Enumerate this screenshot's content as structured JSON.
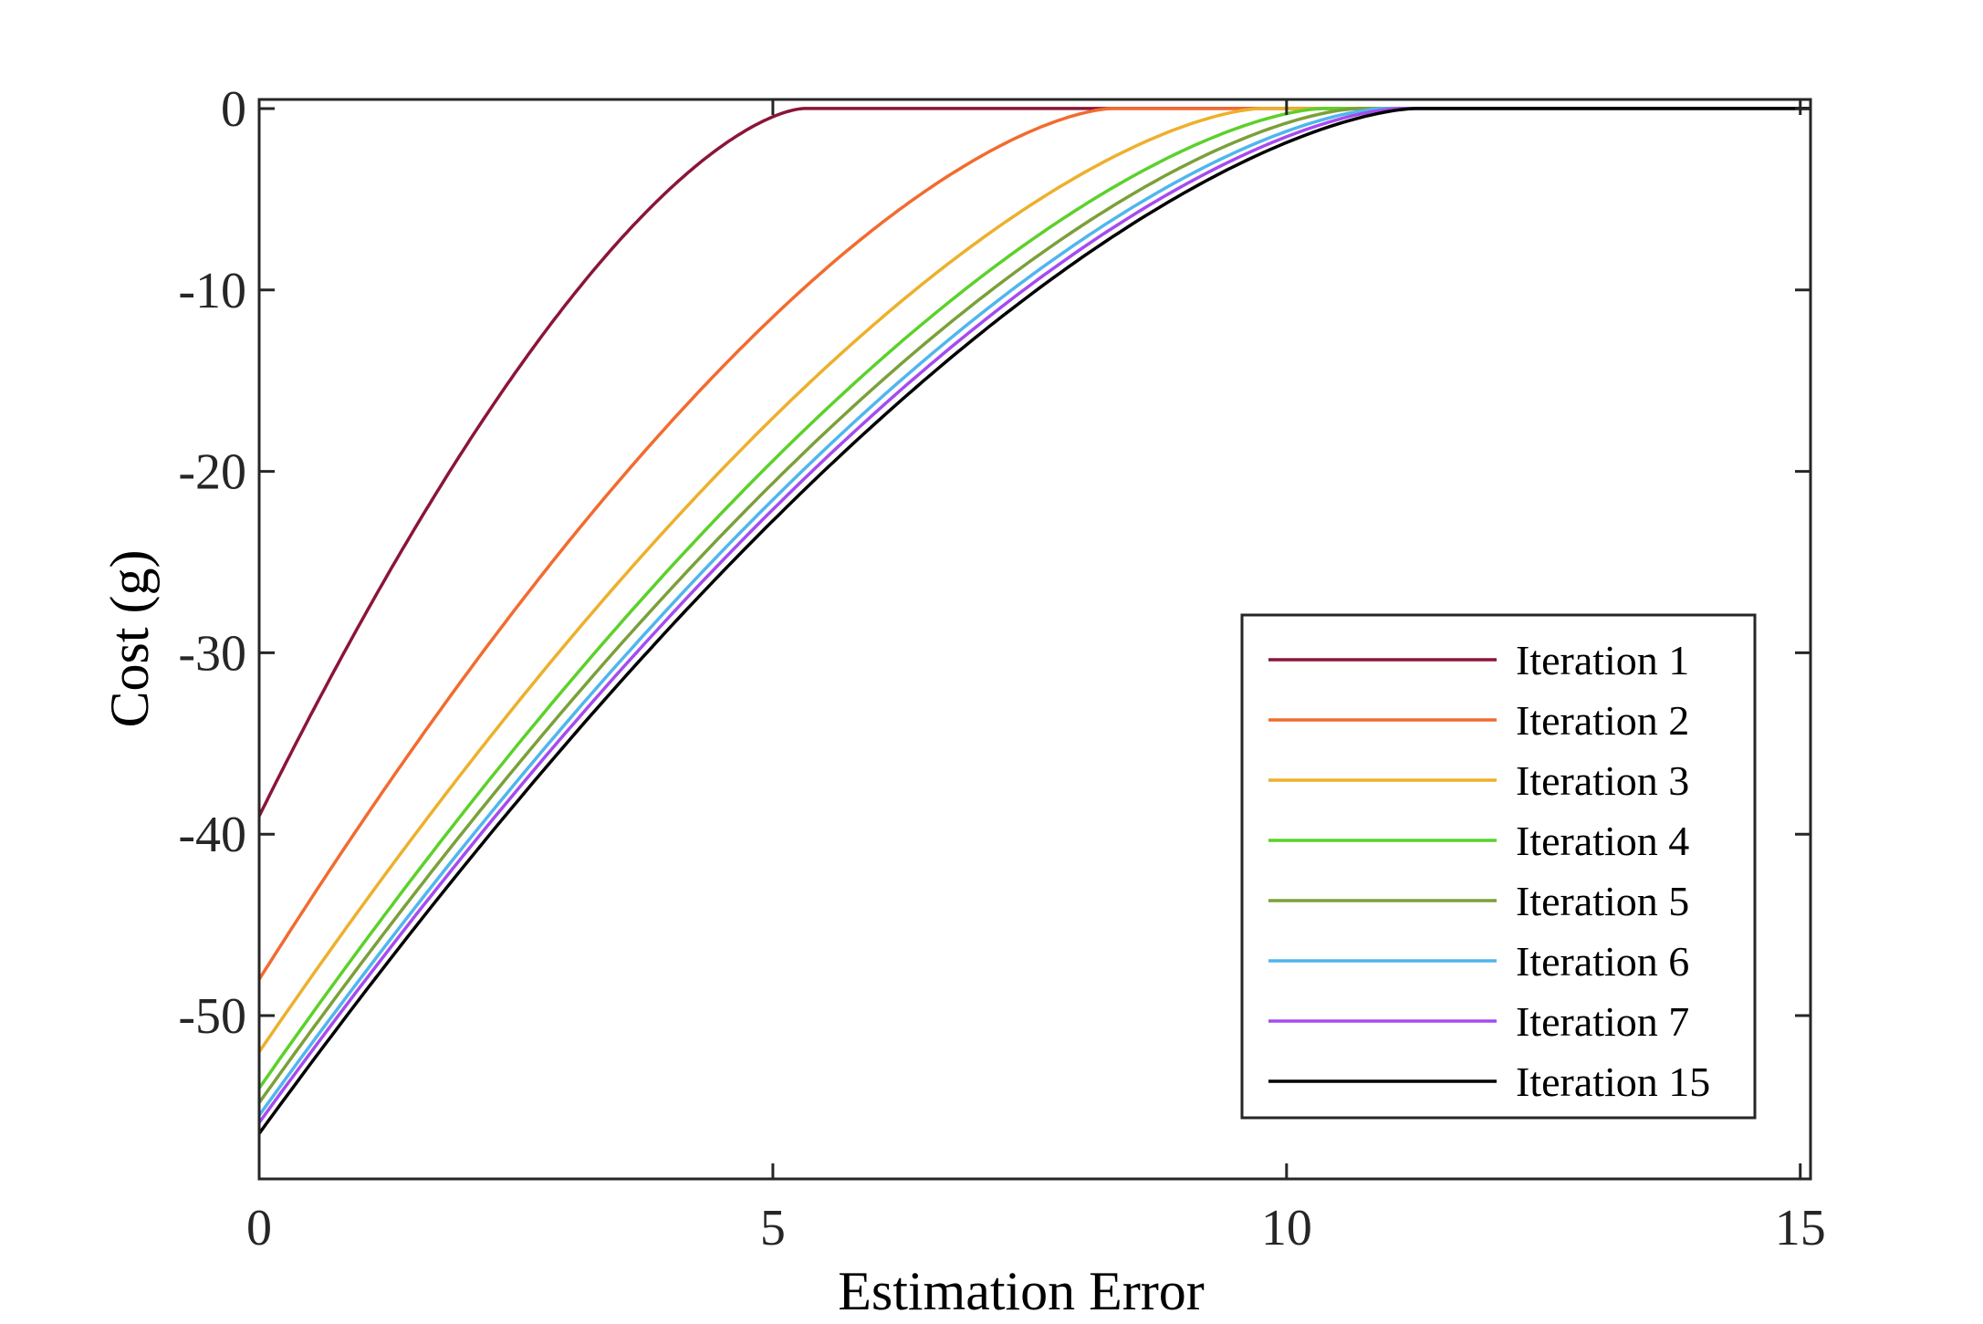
{
  "chart_data": {
    "type": "line",
    "title": "",
    "xlabel": "Estimation Error",
    "ylabel": "Cost (g)",
    "xlim": [
      0,
      15.1
    ],
    "ylim": [
      -59,
      0.5
    ],
    "xticks": [
      0,
      5,
      10,
      15
    ],
    "yticks": [
      0,
      -10,
      -20,
      -30,
      -40,
      -50
    ],
    "xtick_labels": [
      "0",
      "5",
      "10",
      "15"
    ],
    "ytick_labels": [
      "0",
      "-10",
      "-20",
      "-30",
      "-40",
      "-50"
    ],
    "grid": false,
    "legend_position": "bottom-right",
    "series": [
      {
        "name": "Iteration 1",
        "color": "#8B1538",
        "start": -39.0,
        "zero_at": 5.3
      },
      {
        "name": "Iteration 2",
        "color": "#F26B2F",
        "start": -48.0,
        "zero_at": 8.3
      },
      {
        "name": "Iteration 3",
        "color": "#EDB02C",
        "start": -52.0,
        "zero_at": 9.75
      },
      {
        "name": "Iteration 4",
        "color": "#5BD12A",
        "start": -54.0,
        "zero_at": 10.35
      },
      {
        "name": "Iteration 5",
        "color": "#7BA03A",
        "start": -54.8,
        "zero_at": 10.7
      },
      {
        "name": "Iteration 6",
        "color": "#4FB6EE",
        "start": -55.5,
        "zero_at": 10.95
      },
      {
        "name": "Iteration 7",
        "color": "#A64BEF",
        "start": -55.9,
        "zero_at": 11.1
      },
      {
        "name": "Iteration 15",
        "color": "#000000",
        "start": -56.5,
        "zero_at": 11.25
      }
    ]
  }
}
